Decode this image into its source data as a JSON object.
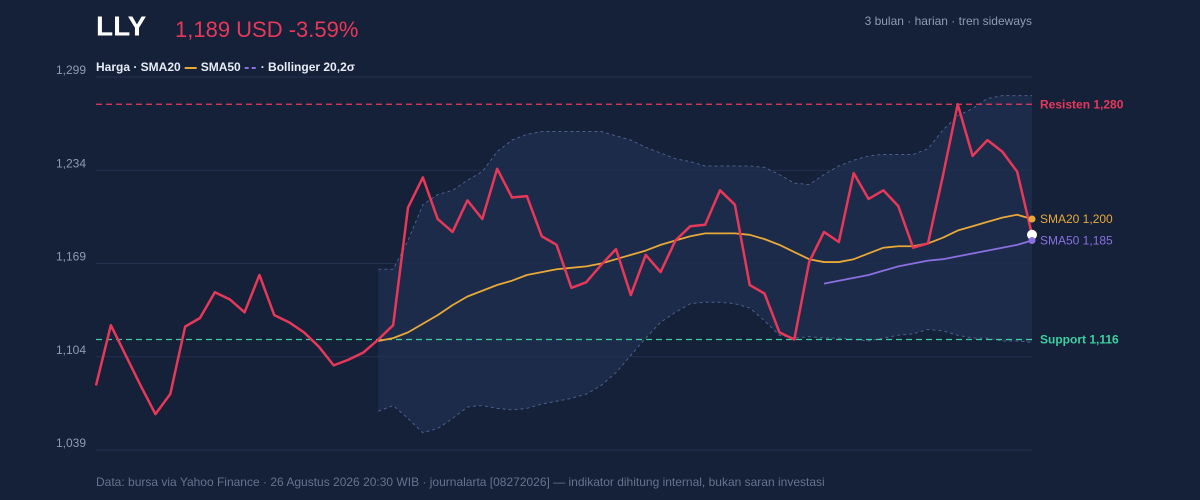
{
  "chart_data": {
    "type": "line",
    "title": "LLY",
    "subtitle": "1,189 USD -3.59%",
    "subtitle_color": "#e8385a",
    "note": "3 bulan · harian · tren sideways",
    "footer": "Data: bursa via Yahoo Finance · 26 Agustus 2026 20:30 WIB · journalarta [08272026] — indikator dihitung internal, bukan saran investasi",
    "legend": [
      {
        "text": "Harga · SMA20",
        "swatch": "#e8a838",
        "dash": false
      },
      {
        "text": "SMA50",
        "swatch": "#8a6fe0",
        "dash": true
      },
      {
        "text": "· Bollinger 20,2σ"
      }
    ],
    "ylim": [
      1039,
      1299
    ],
    "yticks": [
      {
        "value": 1039,
        "label": "1,039"
      },
      {
        "value": 1104,
        "label": "1,104"
      },
      {
        "value": 1169,
        "label": "1,169"
      },
      {
        "value": 1234,
        "label": "1,234"
      },
      {
        "value": 1299,
        "label": "1,299"
      }
    ],
    "grid": true,
    "categories": [
      null,
      null,
      null,
      null,
      null,
      null,
      null,
      null,
      null,
      null,
      null,
      null,
      null,
      null,
      null,
      null,
      null,
      null,
      null,
      null,
      null,
      null,
      null,
      null,
      null,
      null,
      null,
      null,
      null,
      null,
      null,
      null,
      null,
      null,
      null,
      null,
      null,
      null,
      null,
      null,
      null,
      null,
      null,
      null,
      null,
      null,
      null,
      null,
      null,
      null,
      null,
      null,
      null,
      null,
      null,
      null,
      null,
      null,
      null,
      null,
      null,
      null,
      null,
      null
    ],
    "band": {
      "color": "#1f2e4d",
      "edge_color": "#4a5f8a",
      "upper": [
        null,
        null,
        null,
        null,
        null,
        null,
        null,
        null,
        null,
        null,
        null,
        null,
        null,
        null,
        null,
        null,
        null,
        null,
        null,
        1165,
        1165,
        1185,
        1210,
        1217,
        1220,
        1227,
        1233,
        1247,
        1255,
        1259,
        1261,
        1261,
        1261,
        1261,
        1261,
        1258,
        1255,
        1250,
        1246,
        1242,
        1240,
        1237,
        1237,
        1237,
        1237,
        1236,
        1231,
        1225,
        1224,
        1231,
        1237,
        1241,
        1244,
        1245,
        1245,
        1245,
        1249,
        1262,
        1272,
        1277,
        1284,
        1286,
        1286,
        1286
      ],
      "lower": [
        null,
        null,
        null,
        null,
        null,
        null,
        null,
        null,
        null,
        null,
        null,
        null,
        null,
        null,
        null,
        null,
        null,
        null,
        null,
        1066,
        1070,
        1061,
        1051,
        1054,
        1061,
        1069,
        1070,
        1068,
        1067,
        1068,
        1071,
        1073,
        1075,
        1078,
        1084,
        1093,
        1105,
        1117,
        1128,
        1135,
        1141,
        1142,
        1142,
        1141,
        1138,
        1129,
        1119,
        1117,
        1118,
        1117,
        1117,
        1116,
        1115,
        1117,
        1119,
        1120,
        1123,
        1122,
        1119,
        1117,
        1117,
        1115,
        1115,
        1114
      ]
    },
    "series": [
      {
        "color": "#e8385a",
        "width": 2.5,
        "end_dot": "#ffffff",
        "values": [
          1084,
          1126,
          1105,
          1084,
          1064,
          1078,
          1125,
          1131,
          1149,
          1144,
          1135,
          1161,
          1133,
          1128,
          1121,
          1111,
          1098,
          1102,
          1107,
          1116,
          1126,
          1208,
          1229,
          1200,
          1191,
          1213,
          1200,
          1235,
          1215,
          1216,
          1188,
          1182,
          1152,
          1156,
          1168,
          1179,
          1147,
          1175,
          1163,
          1185,
          1195,
          1196,
          1220,
          1210,
          1154,
          1148,
          1121,
          1116,
          1170,
          1191,
          1184,
          1232,
          1214,
          1220,
          1209,
          1180,
          1183,
          1230,
          1280,
          1244,
          1255,
          1247,
          1233,
          1189
        ]
      },
      {
        "color": "#e8a838",
        "width": 1.8,
        "end_dot": "#e8a838",
        "end_label": "SMA20 1,200",
        "values": [
          null,
          null,
          null,
          null,
          null,
          null,
          null,
          null,
          null,
          null,
          null,
          null,
          null,
          null,
          null,
          null,
          null,
          null,
          null,
          1115,
          1117,
          1121,
          1127,
          1133,
          1140,
          1146,
          1150,
          1154,
          1157,
          1161,
          1163,
          1165,
          1166,
          1167,
          1169,
          1172,
          1175,
          1178,
          1182,
          1185,
          1188,
          1190,
          1190,
          1190,
          1189,
          1186,
          1182,
          1177,
          1172,
          1170,
          1170,
          1172,
          1176,
          1180,
          1181,
          1181,
          1183,
          1187,
          1192,
          1195,
          1198,
          1201,
          1203,
          1200
        ]
      },
      {
        "color": "#8a6fe0",
        "width": 1.8,
        "end_dot": "#8a6fe0",
        "end_label": "SMA50 1,185",
        "values": [
          null,
          null,
          null,
          null,
          null,
          null,
          null,
          null,
          null,
          null,
          null,
          null,
          null,
          null,
          null,
          null,
          null,
          null,
          null,
          null,
          null,
          null,
          null,
          null,
          null,
          null,
          null,
          null,
          null,
          null,
          null,
          null,
          null,
          null,
          null,
          null,
          null,
          null,
          null,
          null,
          null,
          null,
          null,
          null,
          null,
          null,
          null,
          null,
          null,
          1155,
          1157,
          1159,
          1161,
          1164,
          1167,
          1169,
          1171,
          1172,
          1174,
          1176,
          1178,
          1180,
          1182,
          1185
        ]
      }
    ],
    "levels": [
      {
        "value": 1280,
        "label": "Resisten 1,280",
        "color": "#e8385a"
      },
      {
        "value": 1116,
        "label": "Support 1,116",
        "color": "#3dcfa0"
      }
    ]
  }
}
